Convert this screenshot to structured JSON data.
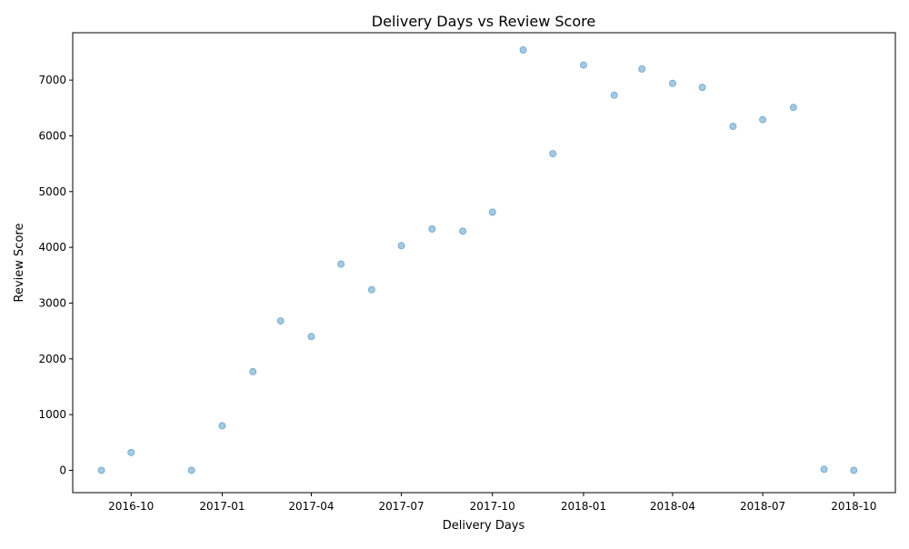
{
  "chart_data": {
    "type": "scatter",
    "title": "Delivery Days vs Review Score",
    "xlabel": "Delivery Days",
    "ylabel": "Review Score",
    "x_scale": "date",
    "xlim": [
      "2016-08-03",
      "2018-11-12"
    ],
    "ylim": [
      -400,
      7850
    ],
    "x_ticks": [
      "2016-10-01",
      "2017-01-01",
      "2017-04-01",
      "2017-07-01",
      "2017-10-01",
      "2018-01-01",
      "2018-04-01",
      "2018-07-01",
      "2018-10-01"
    ],
    "x_tick_labels": [
      "2016-10",
      "2017-01",
      "2017-04",
      "2017-07",
      "2017-10",
      "2018-01",
      "2018-04",
      "2018-07",
      "2018-10"
    ],
    "y_ticks": [
      0,
      1000,
      2000,
      3000,
      4000,
      5000,
      6000,
      7000
    ],
    "y_tick_labels": [
      "0",
      "1000",
      "2000",
      "3000",
      "4000",
      "5000",
      "6000",
      "7000"
    ],
    "grid": false,
    "legend": "none",
    "marker_color": "#1f77b4",
    "marker_alpha": 0.4,
    "points": [
      {
        "x": "2016-09-01",
        "y": 0
      },
      {
        "x": "2016-10-01",
        "y": 320
      },
      {
        "x": "2016-12-01",
        "y": 0
      },
      {
        "x": "2017-01-01",
        "y": 800
      },
      {
        "x": "2017-02-01",
        "y": 1770
      },
      {
        "x": "2017-03-01",
        "y": 2680
      },
      {
        "x": "2017-04-01",
        "y": 2400
      },
      {
        "x": "2017-05-01",
        "y": 3700
      },
      {
        "x": "2017-06-01",
        "y": 3240
      },
      {
        "x": "2017-07-01",
        "y": 4030
      },
      {
        "x": "2017-08-01",
        "y": 4330
      },
      {
        "x": "2017-09-01",
        "y": 4290
      },
      {
        "x": "2017-10-01",
        "y": 4630
      },
      {
        "x": "2017-11-01",
        "y": 7540
      },
      {
        "x": "2017-12-01",
        "y": 5680
      },
      {
        "x": "2018-01-01",
        "y": 7270
      },
      {
        "x": "2018-02-01",
        "y": 6730
      },
      {
        "x": "2018-03-01",
        "y": 7200
      },
      {
        "x": "2018-04-01",
        "y": 6940
      },
      {
        "x": "2018-05-01",
        "y": 6870
      },
      {
        "x": "2018-06-01",
        "y": 6170
      },
      {
        "x": "2018-07-01",
        "y": 6290
      },
      {
        "x": "2018-08-01",
        "y": 6510
      },
      {
        "x": "2018-09-01",
        "y": 20
      },
      {
        "x": "2018-10-01",
        "y": 0
      }
    ]
  }
}
